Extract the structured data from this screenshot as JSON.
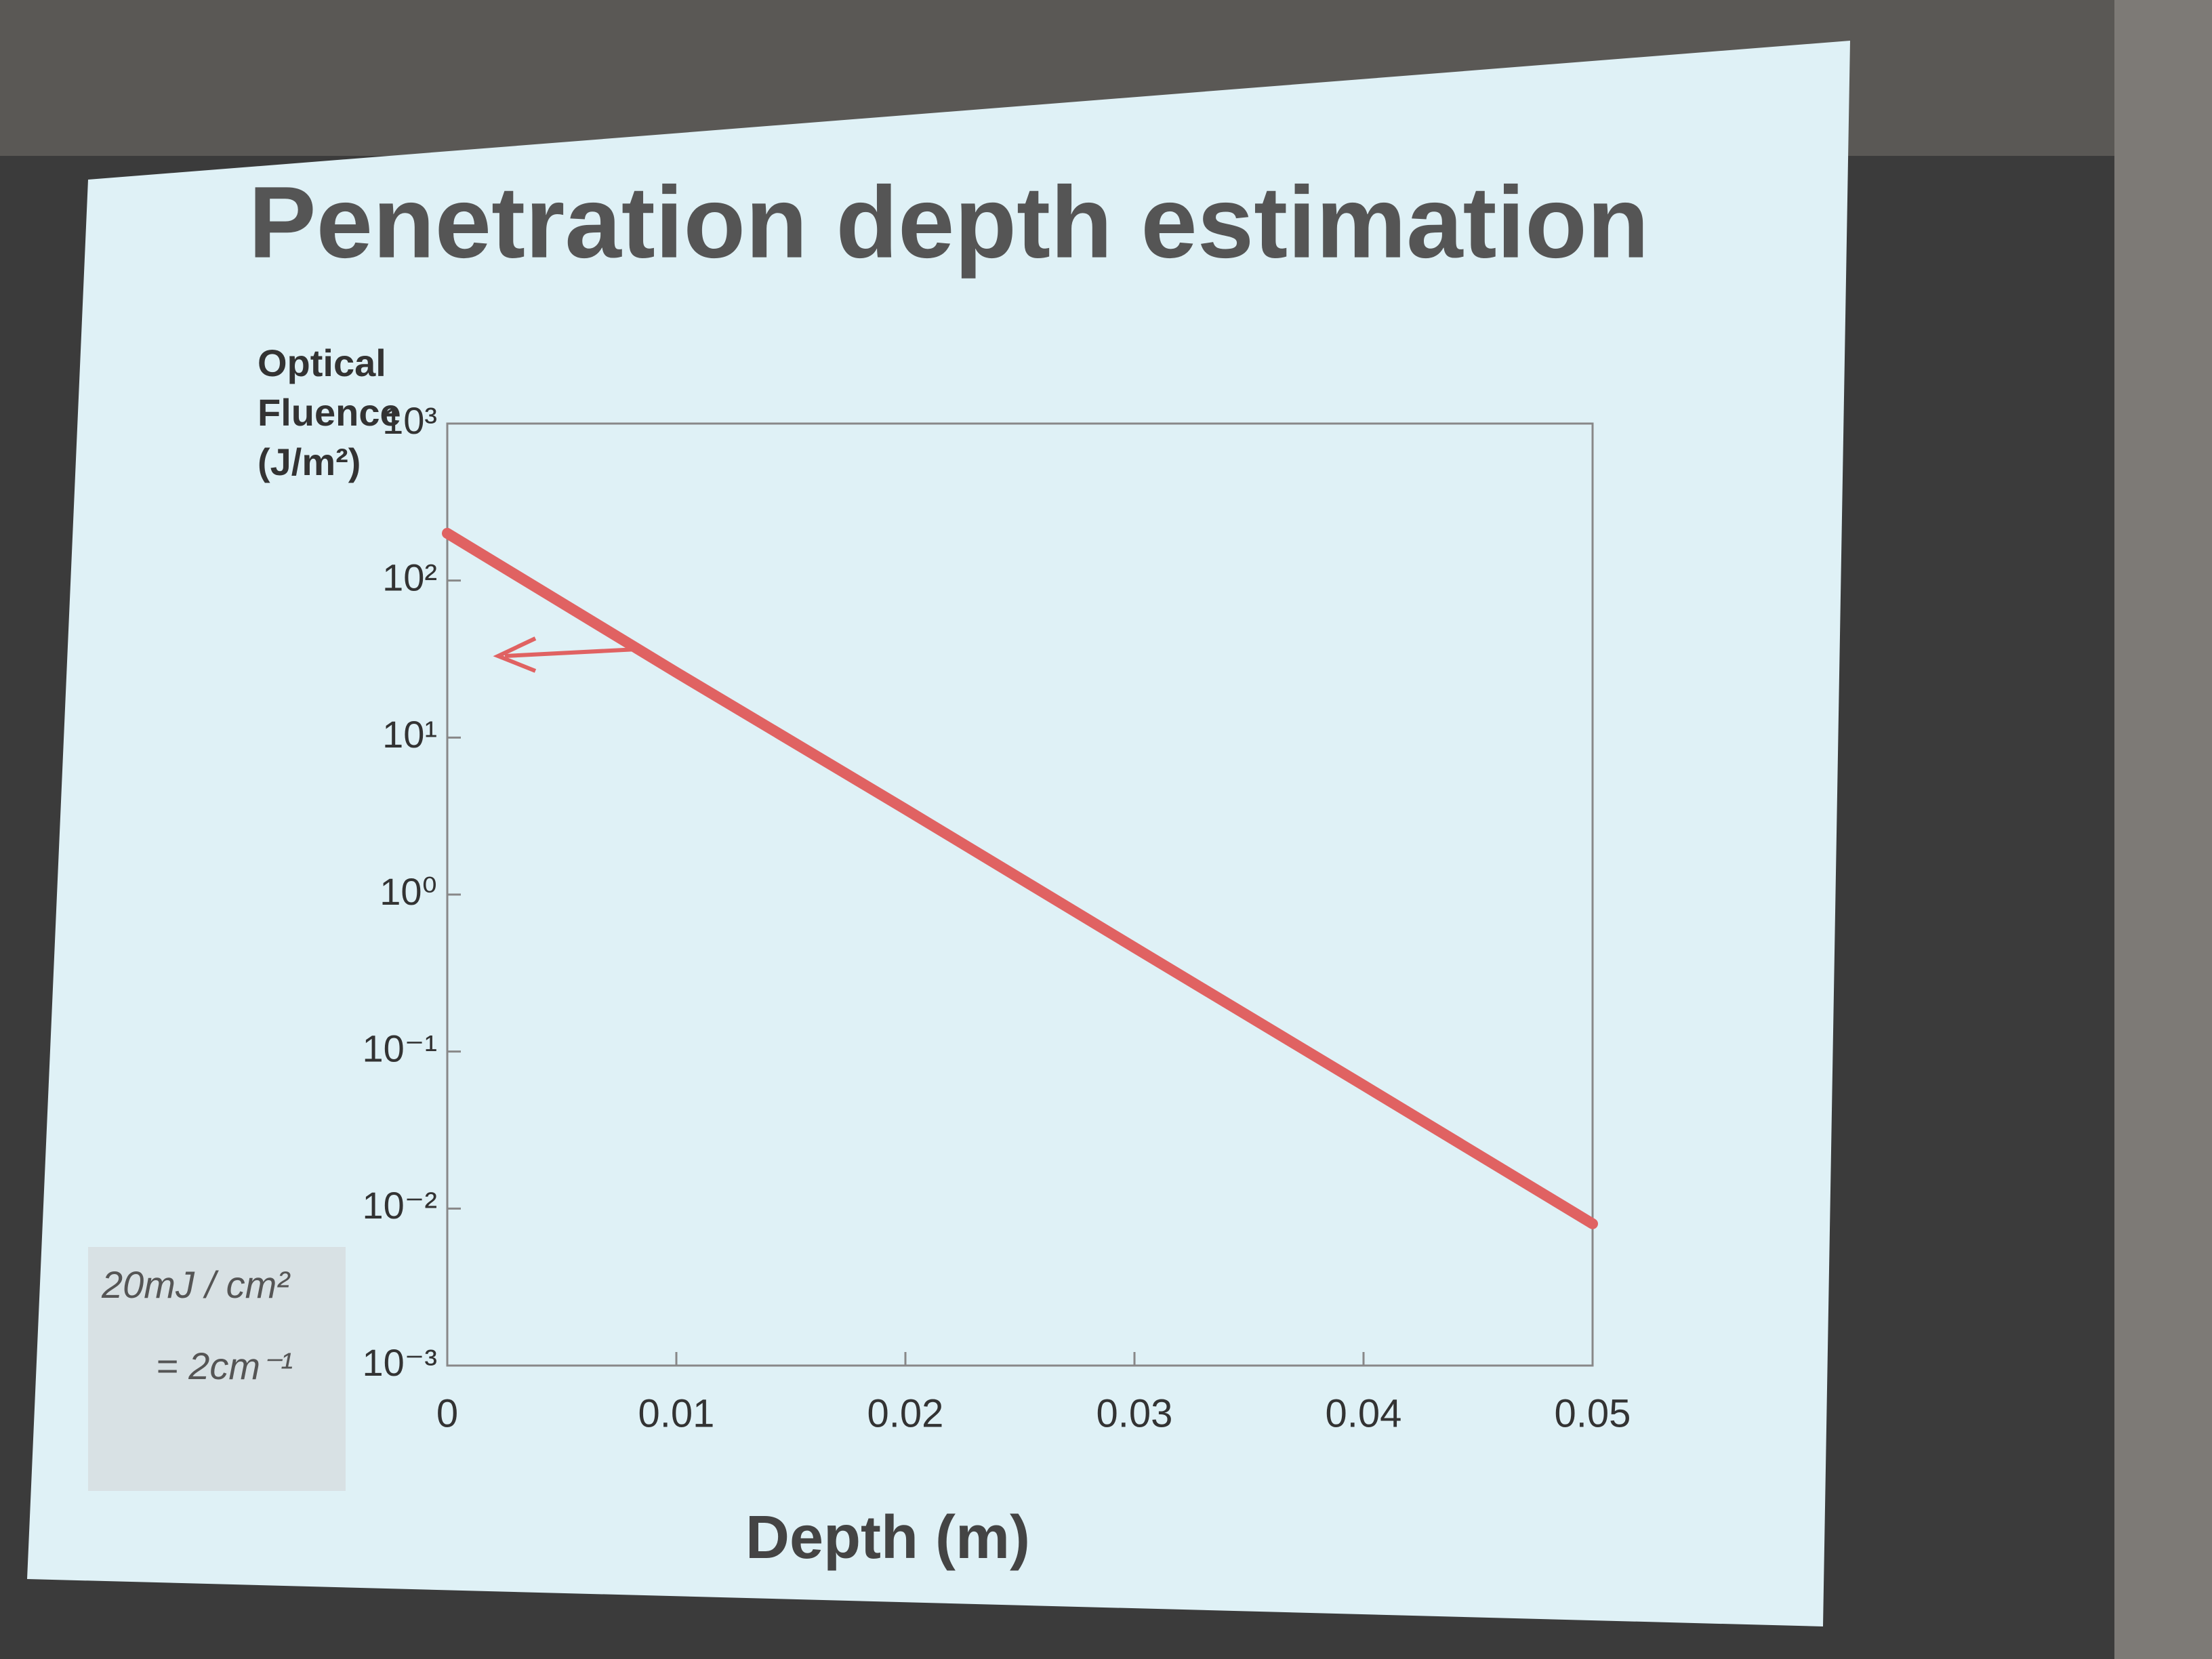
{
  "chart_data": {
    "type": "line",
    "title": "Penetration depth estimation",
    "x_label": "Depth (m)",
    "y_label": "Optical Fluence (J/m²)",
    "x": [
      0,
      0.01,
      0.02,
      0.03,
      0.04,
      0.05
    ],
    "values": [
      200,
      26,
      3.5,
      0.46,
      0.061,
      0.008
    ],
    "color": "#e06262",
    "log_y": true,
    "xlim": [
      0,
      0.05
    ],
    "xticks": [
      0,
      0.01,
      0.02,
      0.03,
      0.04,
      0.05
    ],
    "ylim": [
      0.001,
      1000
    ],
    "yticks": [
      {
        "value": 0.001,
        "label": "10⁻³"
      },
      {
        "value": 0.01,
        "label": "10⁻²"
      },
      {
        "value": 0.1,
        "label": "10⁻¹"
      },
      {
        "value": 1,
        "label": "10⁰"
      },
      {
        "value": 10,
        "label": "10¹"
      },
      {
        "value": 100,
        "label": "10²"
      },
      {
        "value": 1000,
        "label": "10³"
      }
    ],
    "grid": false,
    "annotations": [
      "20mJ / cm²",
      "= 2cm⁻¹"
    ]
  }
}
